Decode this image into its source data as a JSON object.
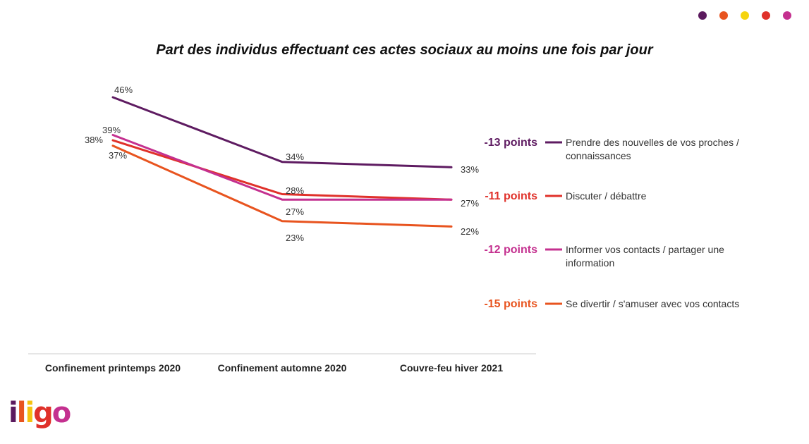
{
  "title": "Part des individus effectuant ces actes sociaux au moins une fois par jour",
  "decor_dots": [
    "#5b1a5e",
    "#e8541f",
    "#f5d40f",
    "#e0312a",
    "#c4308f"
  ],
  "logo": {
    "letters": [
      {
        "ch": "i",
        "color": "#5b1a5e"
      },
      {
        "ch": "l",
        "color": "#e8541f"
      },
      {
        "ch": "i",
        "color": "#f5c20f"
      },
      {
        "ch": "g",
        "color": "#e0312a"
      },
      {
        "ch": "o",
        "color": "#c4308f"
      }
    ]
  },
  "chart_data": {
    "type": "line",
    "title": "Part des individus effectuant ces actes sociaux au moins une fois par jour",
    "categories": [
      "Confinement printemps 2020",
      "Confinement automne 2020",
      "Couvre-feu hiver 2021"
    ],
    "ylim": [
      0,
      60
    ],
    "unit": "%",
    "grid": false,
    "legend_position": "right",
    "series": [
      {
        "name": "Prendre des nouvelles de vos proches / connaissances",
        "legend_lines": [
          "Prendre des nouvelles de vos proches /",
          "connaissances"
        ],
        "values": [
          46,
          34,
          33
        ],
        "labels": [
          "46%",
          "34%",
          "33%"
        ],
        "change": "-13 points",
        "color": "#5e1b61"
      },
      {
        "name": "Discuter / débattre",
        "legend_lines": [
          "Discuter / débattre"
        ],
        "values": [
          38,
          28,
          27
        ],
        "labels": [
          "38%",
          "28%",
          "27%"
        ],
        "change": "-11 points",
        "color": "#e0312a"
      },
      {
        "name": "Informer vos contacts / partager une information",
        "legend_lines": [
          "Informer vos contacts / partager une",
          "information"
        ],
        "values": [
          39,
          27,
          27
        ],
        "labels": [
          "39%",
          "27%",
          ""
        ],
        "change": "-12 points",
        "color": "#c4308f"
      },
      {
        "name": "Se divertir / s'amuser avec vos contacts",
        "legend_lines": [
          "Se divertir / s'amuser avec vos contacts"
        ],
        "values": [
          37,
          23,
          22
        ],
        "labels": [
          "37%",
          "23%",
          "22%"
        ],
        "change": "-15 points",
        "color": "#e8541f"
      }
    ]
  }
}
